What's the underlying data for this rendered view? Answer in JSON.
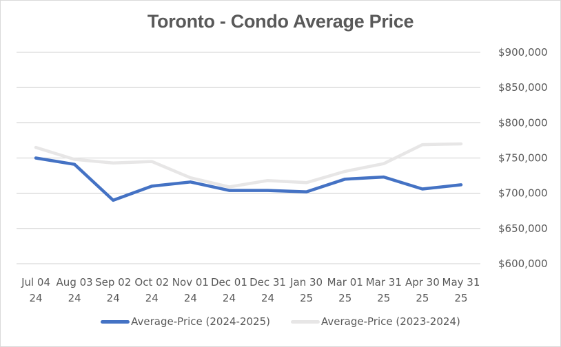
{
  "chart_data": {
    "type": "line",
    "title": "Toronto - Condo Average Price",
    "xlabel": "",
    "ylabel": "",
    "categories": [
      [
        "Jul 04",
        "24"
      ],
      [
        "Aug 03",
        "24"
      ],
      [
        "Sep 02",
        "24"
      ],
      [
        "Oct 02",
        "24"
      ],
      [
        "Nov 01",
        "24"
      ],
      [
        "Dec 01",
        "24"
      ],
      [
        "Dec 31",
        "24"
      ],
      [
        "Jan 30",
        "25"
      ],
      [
        "Mar 01",
        "25"
      ],
      [
        "Mar 31",
        "25"
      ],
      [
        "Apr 30",
        "25"
      ],
      [
        "May 31",
        "25"
      ]
    ],
    "ylim": [
      600000,
      900000
    ],
    "yticks": [
      600000,
      650000,
      700000,
      750000,
      800000,
      850000,
      900000
    ],
    "ytick_labels": [
      "$600,000",
      "$650,000",
      "$700,000",
      "$750,000",
      "$800,000",
      "$850,000",
      "$900,000"
    ],
    "y_axis_position": "right",
    "grid": true,
    "legend_position": "bottom",
    "series": [
      {
        "name": "Average-Price (2024-2025)",
        "color": "#4472c4",
        "values": [
          750000,
          741000,
          690000,
          710000,
          716000,
          704000,
          704000,
          702000,
          720000,
          723000,
          706000,
          712000
        ]
      },
      {
        "name": "Average-Price (2023-2024)",
        "color": "#e7e6e6",
        "values": [
          765000,
          748000,
          743000,
          745000,
          722000,
          709000,
          718000,
          715000,
          731000,
          742000,
          769000,
          770000
        ]
      }
    ]
  }
}
